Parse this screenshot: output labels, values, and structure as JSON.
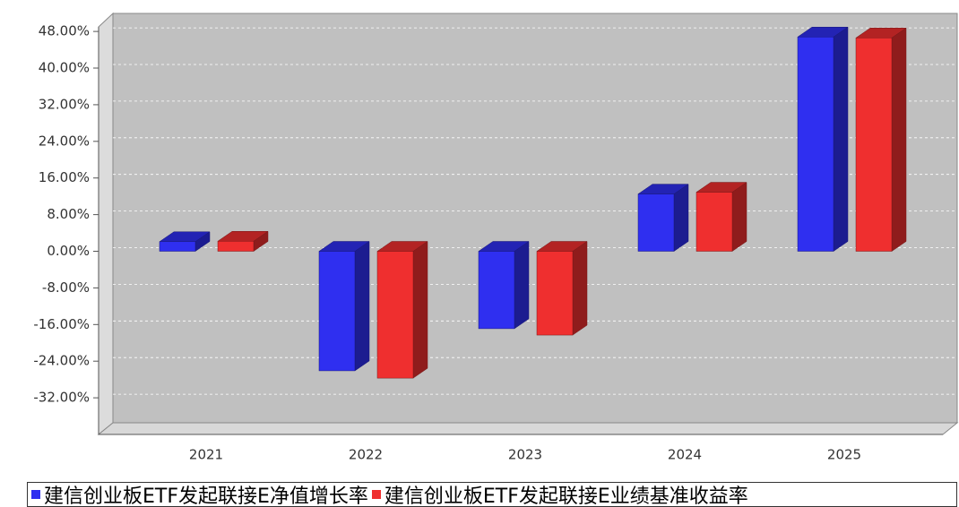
{
  "chart_data": {
    "type": "bar3d",
    "categories": [
      "2021",
      "2022",
      "2023",
      "2024",
      "2025"
    ],
    "series": [
      {
        "name": "建信创业板ETF发起联接E净值增长率",
        "color": "#2f2ff0",
        "values": [
          2.1,
          -26.1,
          -16.9,
          12.5,
          46.8
        ]
      },
      {
        "name": "建信创业板ETF发起联接E业绩基准收益率",
        "color": "#ef2f2f",
        "values": [
          2.2,
          -27.7,
          -18.3,
          12.9,
          46.6
        ]
      }
    ],
    "ylim": [
      -40,
      49
    ],
    "yticks": [
      {
        "value": -32,
        "label": "-32.00%"
      },
      {
        "value": -24,
        "label": "-24.00%"
      },
      {
        "value": -16,
        "label": "-16.00%"
      },
      {
        "value": -8,
        "label": "-8.00%"
      },
      {
        "value": 0,
        "label": "0.00%"
      },
      {
        "value": 8,
        "label": "8.00%"
      },
      {
        "value": 16,
        "label": "16.00%"
      },
      {
        "value": 24,
        "label": "24.00%"
      },
      {
        "value": 32,
        "label": "32.00%"
      },
      {
        "value": 40,
        "label": "40.00%"
      },
      {
        "value": 48,
        "label": "48.00%"
      }
    ],
    "grid": true,
    "legend": "bottom"
  }
}
